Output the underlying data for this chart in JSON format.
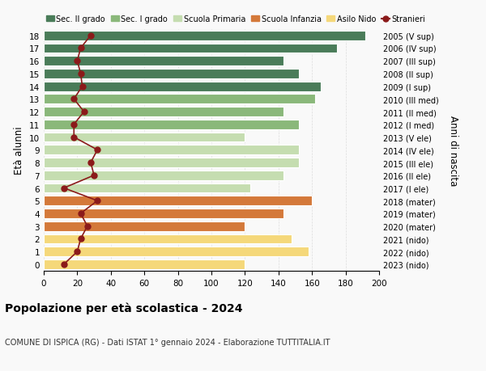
{
  "ages": [
    18,
    17,
    16,
    15,
    14,
    13,
    12,
    11,
    10,
    9,
    8,
    7,
    6,
    5,
    4,
    3,
    2,
    1,
    0
  ],
  "bar_values": [
    192,
    175,
    143,
    152,
    165,
    162,
    143,
    152,
    120,
    152,
    152,
    143,
    123,
    160,
    143,
    120,
    148,
    158,
    120
  ],
  "stranieri": [
    28,
    22,
    20,
    22,
    23,
    18,
    24,
    18,
    18,
    32,
    28,
    30,
    12,
    32,
    22,
    26,
    22,
    20,
    12
  ],
  "right_labels": [
    "2005 (V sup)",
    "2006 (IV sup)",
    "2007 (III sup)",
    "2008 (II sup)",
    "2009 (I sup)",
    "2010 (III med)",
    "2011 (II med)",
    "2012 (I med)",
    "2013 (V ele)",
    "2014 (IV ele)",
    "2015 (III ele)",
    "2016 (II ele)",
    "2017 (I ele)",
    "2018 (mater)",
    "2019 (mater)",
    "2020 (mater)",
    "2021 (nido)",
    "2022 (nido)",
    "2023 (nido)"
  ],
  "bar_colors": [
    "#4a7c59",
    "#4a7c59",
    "#4a7c59",
    "#4a7c59",
    "#4a7c59",
    "#8ab87a",
    "#8ab87a",
    "#8ab87a",
    "#c5ddb0",
    "#c5ddb0",
    "#c5ddb0",
    "#c5ddb0",
    "#c5ddb0",
    "#d4793a",
    "#d4793a",
    "#d4793a",
    "#f5d87a",
    "#f5d87a",
    "#f5d87a"
  ],
  "legend_labels": [
    "Sec. II grado",
    "Sec. I grado",
    "Scuola Primaria",
    "Scuola Infanzia",
    "Asilo Nido",
    "Stranieri"
  ],
  "legend_colors": [
    "#4a7c59",
    "#8ab87a",
    "#c5ddb0",
    "#d4793a",
    "#f5d87a",
    "#8b1a1a"
  ],
  "stranieri_color": "#8b1a1a",
  "title": "Popolazione per età scolastica - 2024",
  "subtitle": "COMUNE DI ISPICA (RG) - Dati ISTAT 1° gennaio 2024 - Elaborazione TUTTITALIA.IT",
  "ylabel": "Età alunni",
  "right_ylabel": "Anni di nascita",
  "xlim": [
    0,
    200
  ],
  "background_color": "#f9f9f9",
  "grid_color": "#dddddd"
}
